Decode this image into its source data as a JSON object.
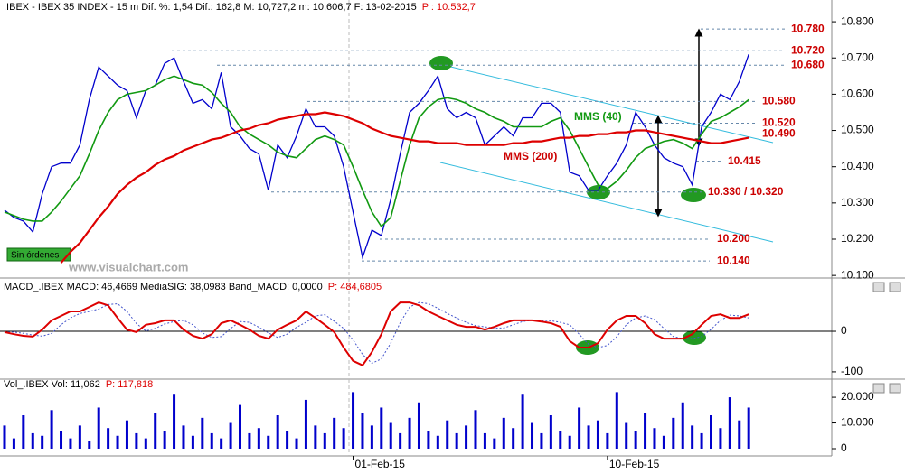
{
  "chart_data": [
    {
      "type": "line",
      "title": ".IBEX - IBEX 35 INDEX -  15 m Dif. %: 1,54 Dif.: 162,8 M: 10,727,2 m: 10,606,7 F: 13-02-2015",
      "subtitle": "P : 10.532,7",
      "categories": [
        null,
        null,
        null,
        null,
        null,
        null,
        null,
        null,
        null,
        null,
        null,
        null,
        null,
        null,
        null,
        null,
        null,
        null,
        null,
        null,
        null,
        null,
        null,
        null,
        null,
        null,
        null,
        null,
        null,
        null,
        null,
        null,
        null,
        null,
        null,
        null,
        null,
        "01-Feb-15",
        null,
        null,
        null,
        null,
        null,
        null,
        null,
        null,
        null,
        null,
        null,
        null,
        null,
        null,
        null,
        null,
        null,
        null,
        null,
        null,
        null,
        null,
        null,
        null,
        null,
        null,
        "10-Feb-15",
        null,
        null,
        null,
        null,
        null,
        null,
        null,
        null,
        null,
        null,
        null,
        null,
        null,
        null,
        null
      ],
      "series": [
        {
          "color": "#0000cc",
          "width": 1.3,
          "values": [
            10280,
            10260,
            10250,
            10220,
            10325,
            10400,
            10410,
            10410,
            10460,
            10585,
            10675,
            10650,
            10625,
            10610,
            10535,
            10610,
            10625,
            10685,
            10700,
            10635,
            10575,
            10585,
            10560,
            10660,
            10510,
            10485,
            10450,
            10435,
            10335,
            10460,
            10425,
            10485,
            10560,
            10510,
            10510,
            10485,
            10400,
            10275,
            10150,
            10225,
            10210,
            10310,
            10435,
            10550,
            10575,
            10610,
            10650,
            10560,
            10535,
            10550,
            10535,
            10460,
            10485,
            10510,
            10485,
            10535,
            10535,
            10575,
            10575,
            10550,
            10385,
            10375,
            10335,
            10335,
            10375,
            10410,
            10460,
            10550,
            10510,
            10460,
            10425,
            10410,
            10400,
            10350,
            10510,
            10550,
            10600,
            10585,
            10635,
            10710
          ]
        },
        {
          "name": "MMS (40)",
          "color": "#119911",
          "width": 1.6,
          "values": [
            10275,
            10265,
            10255,
            10250,
            10250,
            10275,
            10305,
            10340,
            10375,
            10435,
            10500,
            10550,
            10585,
            10600,
            10605,
            10610,
            10625,
            10640,
            10650,
            10640,
            10630,
            10625,
            10605,
            10575,
            10550,
            10510,
            10490,
            10475,
            10460,
            10440,
            10430,
            10425,
            10450,
            10475,
            10485,
            10475,
            10460,
            10400,
            10335,
            10275,
            10235,
            10260,
            10360,
            10460,
            10535,
            10565,
            10585,
            10590,
            10585,
            10575,
            10560,
            10550,
            10535,
            10525,
            10510,
            10510,
            10510,
            10510,
            10525,
            10535,
            10500,
            10450,
            10400,
            10350,
            10340,
            10360,
            10390,
            10425,
            10450,
            10460,
            10470,
            10475,
            10465,
            10450,
            10490,
            10525,
            10535,
            10550,
            10565,
            10585
          ]
        },
        {
          "name": "MMS (200)",
          "color": "#dd0000",
          "width": 2.2,
          "values": [
            null,
            null,
            null,
            null,
            null,
            null,
            10135,
            10165,
            10190,
            10225,
            10260,
            10290,
            10325,
            10350,
            10370,
            10385,
            10405,
            10420,
            10430,
            10445,
            10455,
            10465,
            10475,
            10480,
            10490,
            10500,
            10505,
            10515,
            10520,
            10530,
            10535,
            10540,
            10545,
            10545,
            10550,
            10545,
            10540,
            10530,
            10520,
            10505,
            10495,
            10485,
            10480,
            10475,
            10470,
            10470,
            10465,
            10465,
            10465,
            10460,
            10460,
            10460,
            10460,
            10460,
            10465,
            10465,
            10470,
            10470,
            10475,
            10480,
            10480,
            10485,
            10485,
            10490,
            10490,
            10495,
            10495,
            10500,
            10500,
            10495,
            10490,
            10485,
            10480,
            10475,
            10470,
            10465,
            10465,
            10470,
            10475,
            10480
          ]
        }
      ],
      "levels": [
        {
          "value": 10780,
          "label": "10.780"
        },
        {
          "value": 10720,
          "label": "10.720"
        },
        {
          "value": 10680,
          "label": "10.680"
        },
        {
          "value": 10580,
          "label": "10.580"
        },
        {
          "value": 10520,
          "label": "10.520"
        },
        {
          "value": 10490,
          "label": "10.490"
        },
        {
          "value": 10415,
          "label": "10.415"
        },
        {
          "value": 10330,
          "label": "10.330 / 10.320"
        },
        {
          "value": 10200,
          "label": "10.200"
        },
        {
          "value": 10140,
          "label": "10.140"
        }
      ],
      "annotations": [
        "Sin órdenes",
        "www.visualchart.com"
      ],
      "ylim": [
        10068,
        10860
      ],
      "yticks": [
        {
          "value": 10800,
          "label": "10.800"
        },
        {
          "value": 10700,
          "label": "10.700"
        },
        {
          "value": 10600,
          "label": "10.600"
        },
        {
          "value": 10500,
          "label": "10.500"
        },
        {
          "value": 10400,
          "label": "10.400"
        },
        {
          "value": 10300,
          "label": "10.300"
        },
        {
          "value": 10200,
          "label": "10.200"
        },
        {
          "value": 10100,
          "label": "10.100"
        }
      ]
    },
    {
      "type": "line",
      "title": "MACD_.IBEX MACD: 46,4669 MediaSIG: 38,0983 Band_MACD: 0,0000",
      "subtitle": "P: 484,6805",
      "series": [
        {
          "color": "#4455cc",
          "width": 1,
          "dash": true,
          "values": [
            -2,
            -2,
            -5,
            -9,
            -12,
            -5,
            16,
            33,
            44,
            49,
            55,
            66,
            68,
            49,
            19,
            1,
            7,
            18,
            24,
            27,
            16,
            -4,
            -15,
            -13,
            7,
            24,
            22,
            10,
            -4,
            -15,
            -7,
            10,
            22,
            38,
            41,
            25,
            7,
            -21,
            -57,
            -79,
            -68,
            -29,
            21,
            60,
            71,
            68,
            57,
            44,
            33,
            22,
            14,
            11,
            8,
            8,
            16,
            24,
            27,
            27,
            26,
            22,
            16,
            -7,
            -32,
            -40,
            -35,
            -13,
            16,
            33,
            38,
            29,
            7,
            -13,
            -18,
            -18,
            -13,
            5,
            27,
            40,
            38,
            33
          ]
        },
        {
          "color": "#dd0000",
          "width": 2,
          "values": [
            -2,
            -7,
            -11,
            -13,
            4,
            27,
            38,
            49,
            49,
            60,
            71,
            64,
            33,
            4,
            -2,
            16,
            20,
            27,
            27,
            4,
            -11,
            -18,
            -7,
            20,
            27,
            16,
            4,
            -11,
            -18,
            4,
            16,
            27,
            49,
            33,
            16,
            -2,
            -40,
            -73,
            -84,
            -51,
            -7,
            49,
            71,
            71,
            64,
            49,
            38,
            27,
            16,
            11,
            11,
            4,
            11,
            20,
            27,
            27,
            27,
            24,
            20,
            11,
            -24,
            -40,
            -40,
            -29,
            4,
            27,
            38,
            38,
            20,
            -7,
            -18,
            -18,
            -18,
            -7,
            16,
            38,
            42,
            33,
            33,
            42
          ]
        }
      ],
      "ylim": [
        -118,
        127
      ],
      "yticks": [
        0,
        -100
      ]
    },
    {
      "type": "bar",
      "title": "Vol_.IBEX Vol: 11,062",
      "subtitle": "P: 117,818",
      "color": "#0000cc",
      "values": [
        9000,
        4000,
        13000,
        6000,
        5000,
        15000,
        7000,
        4000,
        9000,
        3000,
        16000,
        8000,
        5000,
        11000,
        6000,
        4000,
        14000,
        7000,
        21000,
        9000,
        5000,
        12000,
        6000,
        4000,
        10000,
        17000,
        6000,
        8000,
        5000,
        13000,
        7000,
        4000,
        19000,
        9000,
        6000,
        12000,
        8000,
        22000,
        14000,
        9000,
        16000,
        10000,
        6000,
        12000,
        18000,
        7000,
        5000,
        11000,
        6000,
        9000,
        15000,
        6000,
        4000,
        12000,
        8000,
        21000,
        10000,
        6000,
        13000,
        7000,
        5000,
        16000,
        9000,
        11000,
        6000,
        22000,
        10000,
        7000,
        14000,
        8000,
        5000,
        12000,
        18000,
        9000,
        6000,
        13000,
        8000,
        20000,
        11000,
        16000
      ],
      "ylim": [
        0,
        26000
      ],
      "yticks": [
        0,
        {
          "value": 10000,
          "label": "10.000"
        },
        {
          "value": 20000,
          "label": "20.000"
        }
      ]
    }
  ]
}
